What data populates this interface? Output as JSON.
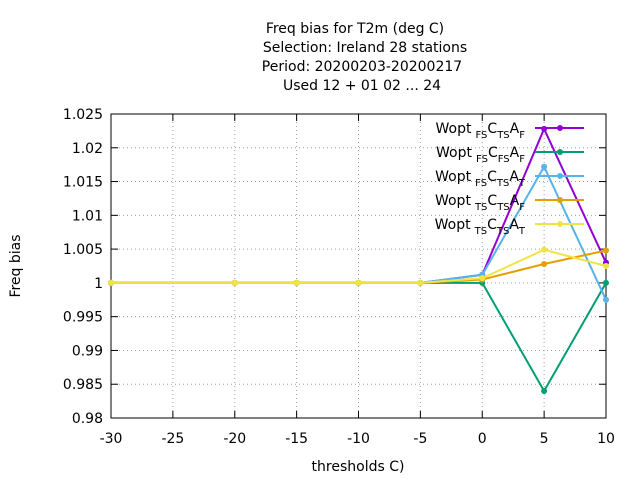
{
  "chart_data": {
    "type": "line",
    "title_lines": [
      "Freq bias  for T2m (deg C)",
      "Selection: Ireland     28 stations",
      "Period: 20200203-20200217",
      "Used  12 + 01 02 ... 24"
    ],
    "xlabel": "thresholds C)",
    "ylabel": "Freq bias",
    "xlim": [
      -30,
      10
    ],
    "ylim": [
      0.98,
      1.025
    ],
    "xticks": [
      -30,
      -25,
      -20,
      -15,
      -10,
      -5,
      0,
      5,
      10
    ],
    "yticks": [
      "0.98",
      "0.985",
      "0.99",
      "0.995",
      "1",
      "1.005",
      "1.01",
      "1.015",
      "1.02",
      "1.025"
    ],
    "grid": true,
    "legend_position": "top-right",
    "series": [
      {
        "name_parts": [
          "Wopt",
          "FS",
          "C",
          "TS",
          "A",
          "F"
        ],
        "color": "#9400d3",
        "x": [
          -30,
          -20,
          -15,
          -10,
          -5,
          0,
          5,
          10
        ],
        "y": [
          1,
          1,
          1,
          1,
          1,
          1.0012,
          1.0228,
          1.003
        ]
      },
      {
        "name_parts": [
          "Wopt",
          "FS",
          "C",
          "FS",
          "A",
          "F"
        ],
        "color": "#009e73",
        "x": [
          -30,
          -20,
          -15,
          -10,
          -5,
          0,
          5,
          10
        ],
        "y": [
          1,
          1,
          1,
          1,
          1,
          1.0,
          0.984,
          1.0
        ]
      },
      {
        "name_parts": [
          "Wopt",
          "FS",
          "C",
          "TS",
          "A",
          "T"
        ],
        "color": "#56b4e9",
        "x": [
          -30,
          -20,
          -15,
          -10,
          -5,
          0,
          5,
          10
        ],
        "y": [
          1,
          1,
          1,
          1,
          1,
          1.0012,
          1.0172,
          0.9975
        ]
      },
      {
        "name_parts": [
          "Wopt",
          "TS",
          "C",
          "TS",
          "A",
          "F"
        ],
        "color": "#e69f00",
        "x": [
          -30,
          -20,
          -15,
          -10,
          -5,
          0,
          5,
          10
        ],
        "y": [
          1,
          1,
          1,
          1,
          1,
          1.0005,
          1.0028,
          1.0048
        ]
      },
      {
        "name_parts": [
          "Wopt",
          "TS",
          "C",
          "TS",
          "A",
          "T"
        ],
        "color": "#f0e442",
        "x": [
          -30,
          -20,
          -15,
          -10,
          -5,
          0,
          5,
          10
        ],
        "y": [
          1,
          1,
          1,
          1,
          1,
          1.0007,
          1.0049,
          1.0025
        ]
      }
    ]
  }
}
